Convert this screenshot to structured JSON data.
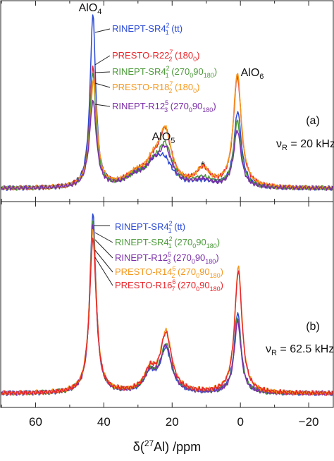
{
  "chart_data": {
    "type": "line",
    "xlabel": {
      "pre": "δ(",
      "sup": "27",
      "post": "Al) /ppm"
    },
    "xlim": [
      70,
      -27
    ],
    "xticks": [
      60,
      40,
      20,
      0,
      -20
    ],
    "xtick_labels": [
      "60",
      "40",
      "20",
      "0",
      "−20"
    ],
    "panels": [
      {
        "id": "a",
        "panel_label": "(a)",
        "spin_rate": {
          "sym": "ν",
          "sub": "R",
          "val": " = 20 kHz"
        },
        "peak_labels": [
          {
            "base": "AlO",
            "sub": "4",
            "ppm": 42.5
          },
          {
            "base": "AlO",
            "sub": "5",
            "ppm": 23
          },
          {
            "base": "AlO",
            "sub": "6",
            "ppm": 2.8
          }
        ],
        "annotations": [
          {
            "text": "*",
            "ppm": 11
          }
        ],
        "series": [
          {
            "label": "RINEPT-SR4",
            "sup": "2",
            "sub": "1",
            "suffix": " (tt)",
            "color": "#2a49d6",
            "peaks": [
              [
                43.2,
                1.0,
                1.0
              ],
              [
                30.5,
                0.06,
                4.0
              ],
              [
                25.5,
                0.09,
                2.5
              ],
              [
                22.3,
                0.14,
                3.0
              ],
              [
                11.0,
                0.03,
                4.0
              ],
              [
                0.8,
                0.44,
                1.3
              ]
            ],
            "base": 0.01
          },
          {
            "label": "PRESTO-R22",
            "sup": "7",
            "sub": "2",
            "suffix": " (180",
            "phase": "0",
            "tail": ")",
            "color": "#e8262b",
            "peaks": [
              [
                43.2,
                0.7,
                1.1
              ],
              [
                30.5,
                0.07,
                4.0
              ],
              [
                25.5,
                0.1,
                2.5
              ],
              [
                22.0,
                0.3,
                2.2
              ],
              [
                11.0,
                0.1,
                2.5
              ],
              [
                0.9,
                0.64,
                1.4
              ]
            ],
            "base": 0.01
          },
          {
            "label": "RINEPT-SR4",
            "sup": "2",
            "sub": "1",
            "suffix": " (270",
            "phase": "0",
            "mid": "90",
            "phase2": "180",
            "tail": ")",
            "color": "#4c9a3a",
            "peaks": [
              [
                43.2,
                0.66,
                1.1
              ],
              [
                30.5,
                0.06,
                4.0
              ],
              [
                25.5,
                0.09,
                2.5
              ],
              [
                22.0,
                0.22,
                2.4
              ],
              [
                11.0,
                0.05,
                3.5
              ],
              [
                0.9,
                0.38,
                1.3
              ]
            ],
            "base": 0.01
          },
          {
            "label": "PRESTO-R18",
            "sup": "7",
            "sub": "2",
            "suffix": " (180",
            "phase": "0",
            "tail": ")",
            "color": "#f5981e",
            "peaks": [
              [
                43.0,
                0.62,
                1.2
              ],
              [
                30.5,
                0.07,
                4.0
              ],
              [
                25.5,
                0.11,
                2.5
              ],
              [
                22.0,
                0.3,
                2.2
              ],
              [
                11.0,
                0.1,
                2.5
              ],
              [
                0.9,
                0.66,
                1.4
              ]
            ],
            "base": 0.01
          },
          {
            "label": "RINEPT-R12",
            "sup": "5",
            "sub": "3",
            "suffix": " (270",
            "phase": "0",
            "mid": "90",
            "phase2": "180",
            "tail": ")",
            "color": "#7b2fa8",
            "peaks": [
              [
                43.2,
                0.5,
                1.2
              ],
              [
                30.5,
                0.06,
                4.0
              ],
              [
                25.5,
                0.09,
                2.5
              ],
              [
                22.0,
                0.2,
                2.4
              ],
              [
                11.0,
                0.04,
                3.5
              ],
              [
                0.9,
                0.33,
                1.3
              ]
            ],
            "base": 0.01
          }
        ]
      },
      {
        "id": "b",
        "panel_label": "(b)",
        "spin_rate": {
          "sym": "ν",
          "sub": "R",
          "val": " = 62.5 kHz"
        },
        "peak_labels": [],
        "annotations": [],
        "series": [
          {
            "label": "RINEPT-SR4",
            "sup": "2",
            "sub": "1",
            "suffix": " (tt)",
            "color": "#2a49d6",
            "peaks": [
              [
                43.2,
                1.0,
                1.1
              ],
              [
                26.5,
                0.1,
                2.0
              ],
              [
                21.8,
                0.24,
                2.0
              ],
              [
                0.8,
                0.45,
                1.2
              ]
            ],
            "base": 0.03
          },
          {
            "label": "RINEPT-SR4",
            "sup": "2",
            "sub": "1",
            "suffix": " (270",
            "phase": "0",
            "mid": "90",
            "phase2": "180",
            "tail": ")",
            "color": "#4c9a3a",
            "peaks": [
              [
                43.2,
                0.96,
                1.1
              ],
              [
                26.5,
                0.1,
                2.0
              ],
              [
                21.8,
                0.26,
                2.0
              ],
              [
                0.8,
                0.42,
                1.2
              ]
            ],
            "base": 0.03
          },
          {
            "label": "RINEPT-R12",
            "sup": "5",
            "sub": "3",
            "suffix": " (270",
            "phase": "0",
            "mid": "90",
            "phase2": "180",
            "tail": ")",
            "color": "#7b2fa8",
            "peaks": [
              [
                43.2,
                0.94,
                1.1
              ],
              [
                26.5,
                0.1,
                2.0
              ],
              [
                21.8,
                0.25,
                2.0
              ],
              [
                0.8,
                0.4,
                1.2
              ]
            ],
            "base": 0.03
          },
          {
            "label": "PRESTO-R14",
            "sup": "6",
            "sub": "2",
            "suffix": " (270",
            "phase": "0",
            "mid": "90",
            "phase2": "180",
            "tail": ")",
            "color": "#f5981e",
            "peaks": [
              [
                43.2,
                0.9,
                1.2
              ],
              [
                26.5,
                0.11,
                2.0
              ],
              [
                21.8,
                0.33,
                2.0
              ],
              [
                0.6,
                0.7,
                1.3
              ]
            ],
            "base": 0.03
          },
          {
            "label": "PRESTO-R16",
            "sup": "6",
            "sub": "7",
            "suffix": " (270",
            "phase": "0",
            "mid": "90",
            "phase2": "180",
            "tail": ")",
            "color": "#e8262b",
            "peaks": [
              [
                43.2,
                0.86,
                1.2
              ],
              [
                26.5,
                0.11,
                2.0
              ],
              [
                21.8,
                0.32,
                2.0
              ],
              [
                0.6,
                0.68,
                1.3
              ]
            ],
            "base": 0.03
          }
        ]
      }
    ]
  }
}
